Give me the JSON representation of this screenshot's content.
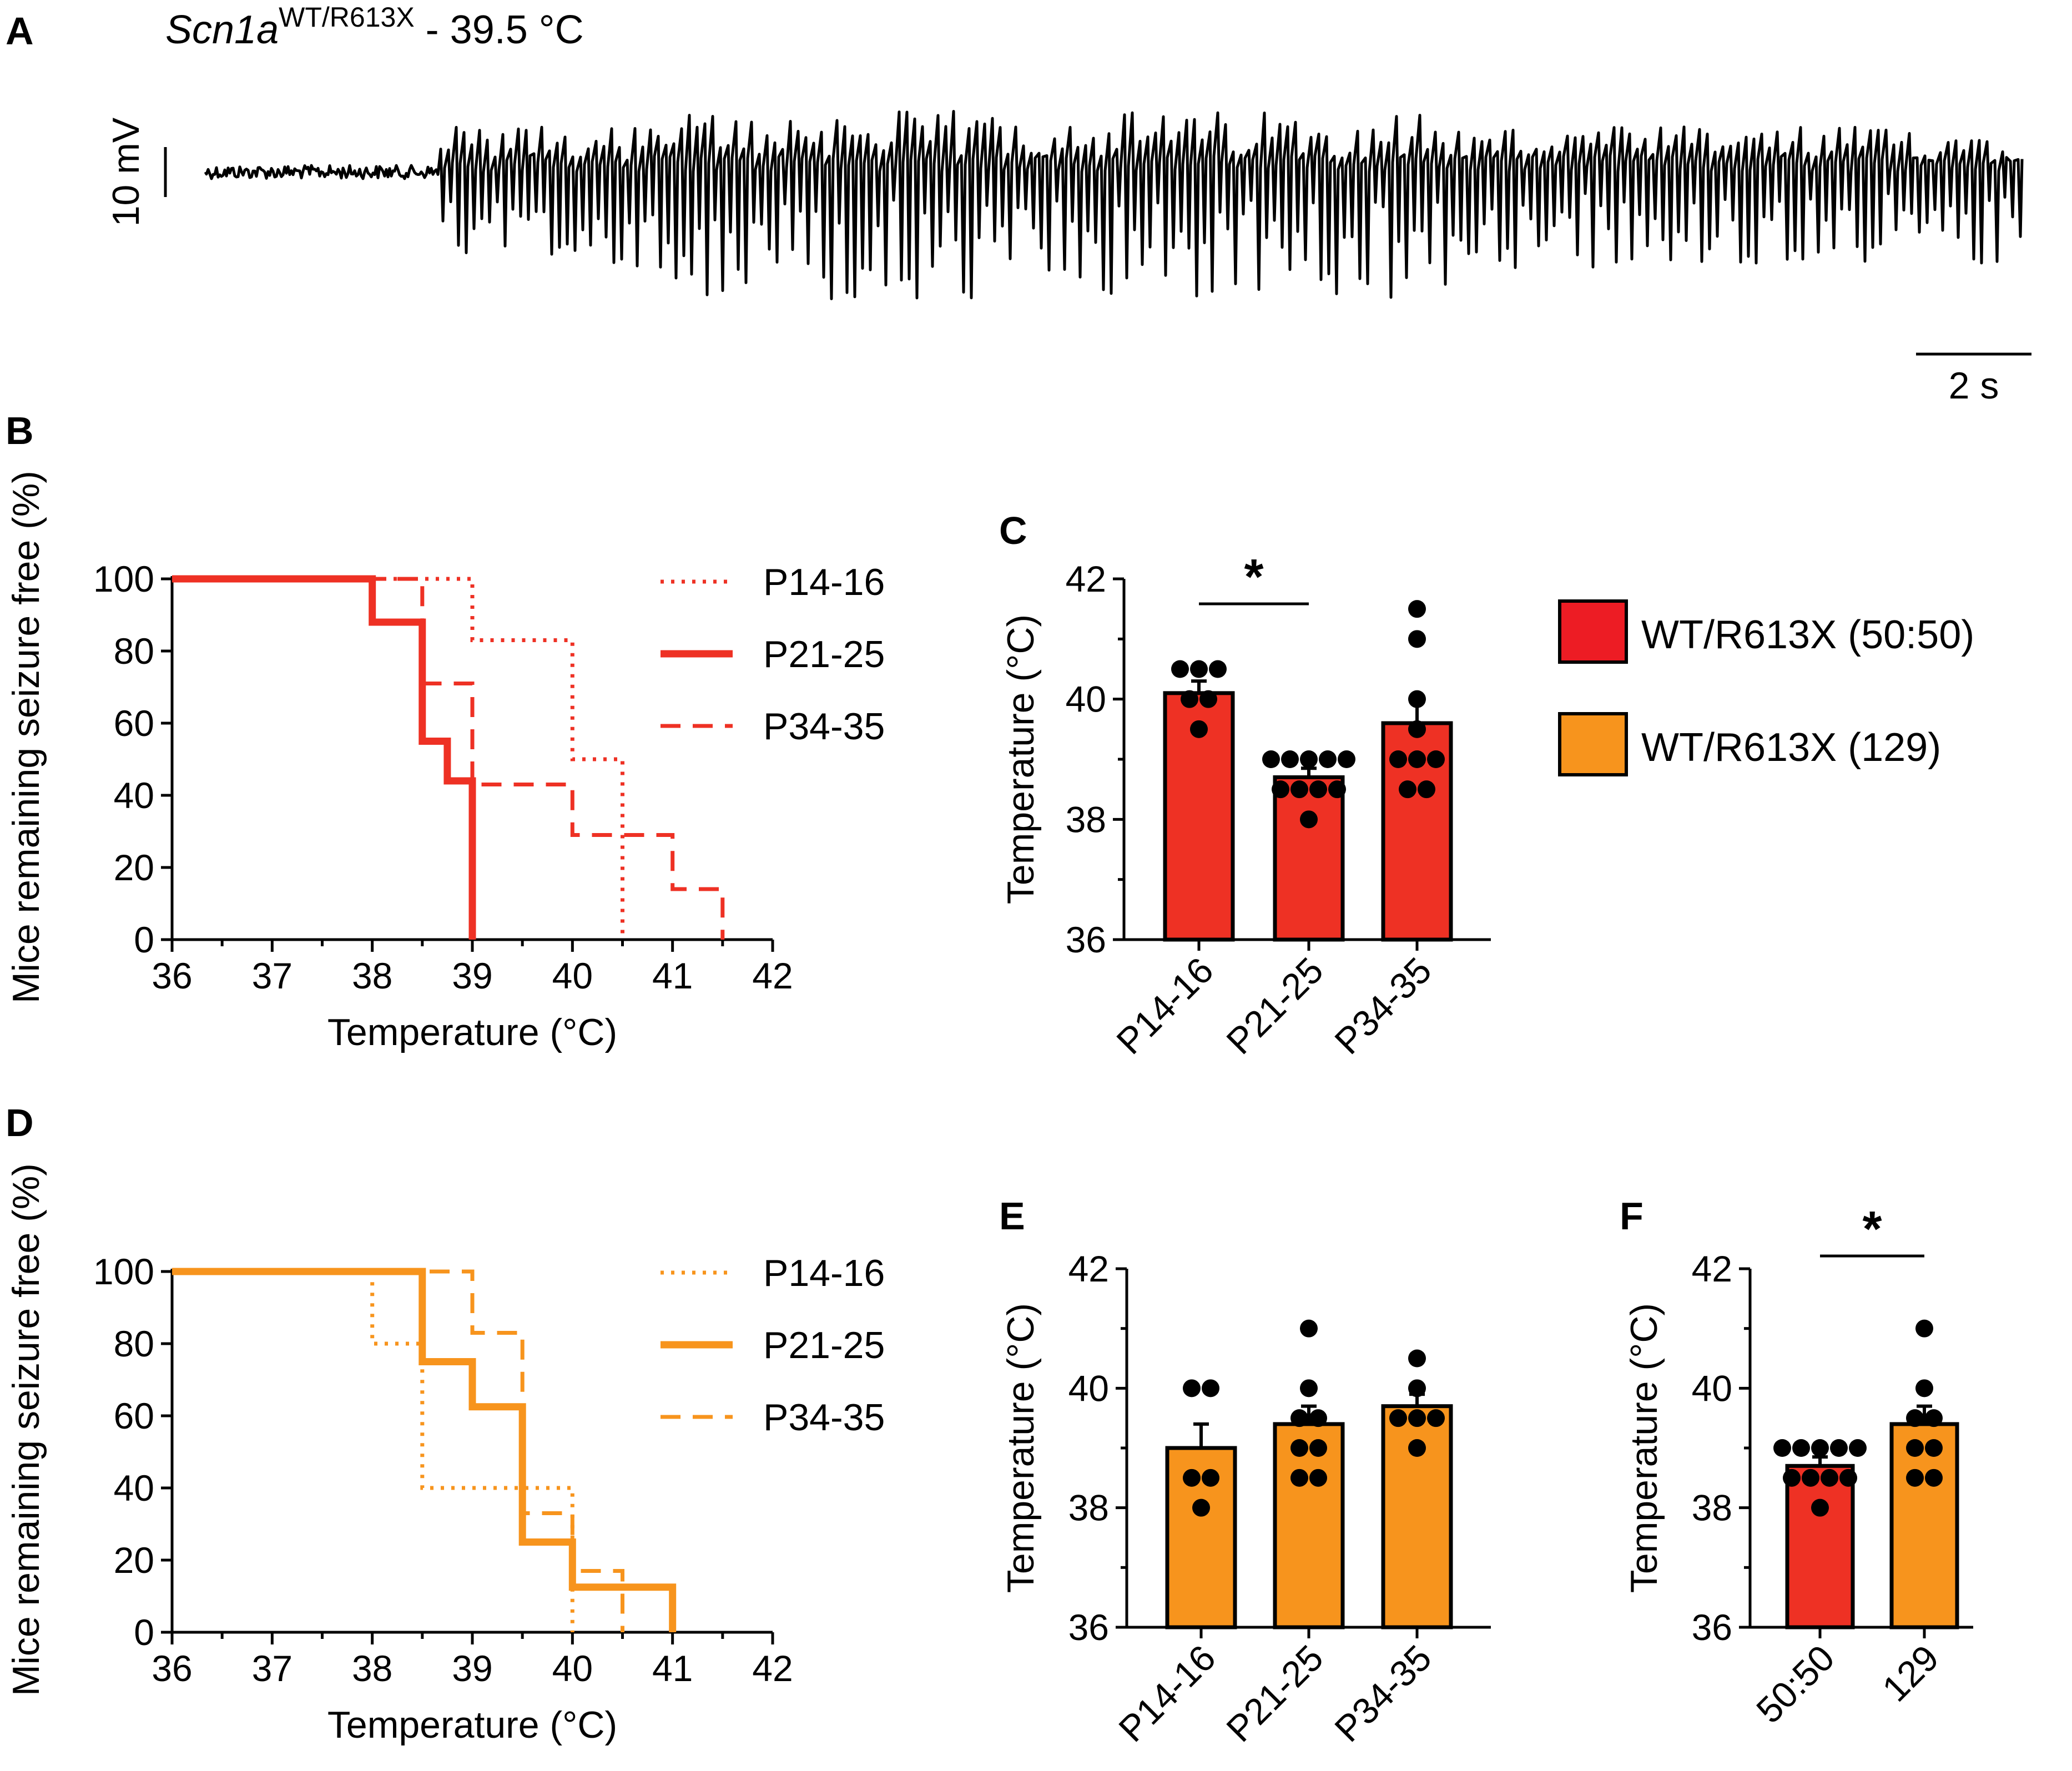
{
  "colors": {
    "red": "#ee3124",
    "orange": "#f7941d",
    "legend_red": "#ed1c24",
    "black": "#000000"
  },
  "panel_a": {
    "letter": "A",
    "title_gene": "Scn1a",
    "title_genotype": "WT/R613X",
    "title_rest": " - 39.5 °C",
    "scale_voltage_label": "10 mV",
    "scale_time_label": "2 s"
  },
  "legend": {
    "items": [
      {
        "label": "WT/R613X (50:50)",
        "color": "#ed1c24"
      },
      {
        "label": "WT/R613X (129)",
        "color": "#f7941d"
      }
    ]
  },
  "chart_data": [
    {
      "id": "B",
      "letter": "B",
      "type": "line",
      "style": "step",
      "color": "#ee3124",
      "xlabel": "Temperature (°C)",
      "ylabel": "Mice remaining seizure free (%)",
      "xlim": [
        36,
        42
      ],
      "ylim": [
        0,
        100
      ],
      "xticks": [
        "36",
        "37",
        "38",
        "39",
        "40",
        "41",
        "42"
      ],
      "yticks": [
        "0",
        "20",
        "40",
        "60",
        "80",
        "100"
      ],
      "series": [
        {
          "name": "P14-16",
          "dash": "dotted",
          "x": [
            36,
            39,
            39,
            40,
            40,
            40.5,
            40.5
          ],
          "y": [
            100,
            100,
            83,
            83,
            50,
            50,
            0
          ]
        },
        {
          "name": "P21-25",
          "dash": "solid",
          "x": [
            36,
            38,
            38,
            38.5,
            38.5,
            38.75,
            38.75,
            39,
            39
          ],
          "y": [
            100,
            100,
            88,
            88,
            55,
            55,
            44,
            44,
            0
          ]
        },
        {
          "name": "P34-35",
          "dash": "dashed",
          "x": [
            36,
            38.5,
            38.5,
            39,
            39,
            40,
            40,
            41,
            41,
            41.5,
            41.5
          ],
          "y": [
            100,
            100,
            71,
            71,
            43,
            43,
            29,
            29,
            14,
            14,
            0
          ]
        }
      ]
    },
    {
      "id": "C",
      "letter": "C",
      "type": "bar",
      "fill": "#ee3124",
      "ylabel": "Temperature  (°C)",
      "ylim": [
        36,
        42
      ],
      "yticks": [
        "36",
        "38",
        "40",
        "42"
      ],
      "categories": [
        "P14-16",
        "P21-25",
        "P34-35"
      ],
      "values": [
        40.1,
        38.7,
        39.6
      ],
      "sem": [
        0.2,
        0.15,
        0.35
      ],
      "points": [
        [
          40.5,
          40.5,
          40.5,
          40,
          40,
          39.5
        ],
        [
          39,
          39,
          39,
          39,
          39,
          38.5,
          38.5,
          38.5,
          38.5,
          38
        ],
        [
          41.5,
          41,
          40,
          39.5,
          39,
          39,
          39,
          38.5,
          38.5
        ]
      ],
      "significance": [
        {
          "from": 0,
          "to": 1,
          "label": "*"
        }
      ]
    },
    {
      "id": "D",
      "letter": "D",
      "type": "line",
      "style": "step",
      "color": "#f7941d",
      "xlabel": "Temperature (°C)",
      "ylabel": "Mice remaining seizure free (%)",
      "xlim": [
        36,
        42
      ],
      "ylim": [
        0,
        100
      ],
      "xticks": [
        "36",
        "37",
        "38",
        "39",
        "40",
        "41",
        "42"
      ],
      "yticks": [
        "0",
        "20",
        "40",
        "60",
        "80",
        "100"
      ],
      "series": [
        {
          "name": "P14-16",
          "dash": "dotted",
          "x": [
            36,
            38,
            38,
            38.5,
            38.5,
            40,
            40
          ],
          "y": [
            100,
            100,
            80,
            80,
            40,
            40,
            0
          ]
        },
        {
          "name": "P21-25",
          "dash": "solid",
          "x": [
            36,
            38.5,
            38.5,
            39,
            39,
            39.5,
            39.5,
            40,
            40,
            41,
            41
          ],
          "y": [
            100,
            100,
            75,
            75,
            62.5,
            62.5,
            25,
            25,
            12.5,
            12.5,
            0
          ]
        },
        {
          "name": "P34-35",
          "dash": "dashed",
          "x": [
            36,
            39,
            39,
            39.5,
            39.5,
            40,
            40,
            40.5,
            40.5
          ],
          "y": [
            100,
            100,
            83,
            83,
            33,
            33,
            17,
            17,
            0
          ]
        }
      ]
    },
    {
      "id": "E",
      "letter": "E",
      "type": "bar",
      "fill": "#f7941d",
      "ylabel": "Temperature  (°C)",
      "ylim": [
        36,
        42
      ],
      "yticks": [
        "36",
        "38",
        "40",
        "42"
      ],
      "categories": [
        "P14-16",
        "P21-25",
        "P34-35"
      ],
      "values": [
        39.0,
        39.4,
        39.7
      ],
      "sem": [
        0.4,
        0.3,
        0.2
      ],
      "points": [
        [
          40,
          40,
          38.5,
          38.5,
          38
        ],
        [
          41,
          40,
          39.5,
          39.5,
          39,
          39,
          38.5,
          38.5
        ],
        [
          40.5,
          40,
          39.5,
          39.5,
          39.5,
          39
        ]
      ],
      "significance": []
    },
    {
      "id": "F",
      "letter": "F",
      "type": "bar",
      "fill": [
        "#ee3124",
        "#f7941d"
      ],
      "ylabel": "Temperature  (°C)",
      "ylim": [
        36,
        42
      ],
      "yticks": [
        "36",
        "38",
        "40",
        "42"
      ],
      "categories": [
        "50:50",
        "129"
      ],
      "values": [
        38.7,
        39.4
      ],
      "sem": [
        0.15,
        0.3
      ],
      "points": [
        [
          39,
          39,
          39,
          39,
          39,
          38.5,
          38.5,
          38.5,
          38.5,
          38
        ],
        [
          41,
          40,
          39.5,
          39.5,
          39,
          39,
          38.5,
          38.5
        ]
      ],
      "significance": [
        {
          "from": 0,
          "to": 1,
          "label": "*"
        }
      ]
    }
  ]
}
